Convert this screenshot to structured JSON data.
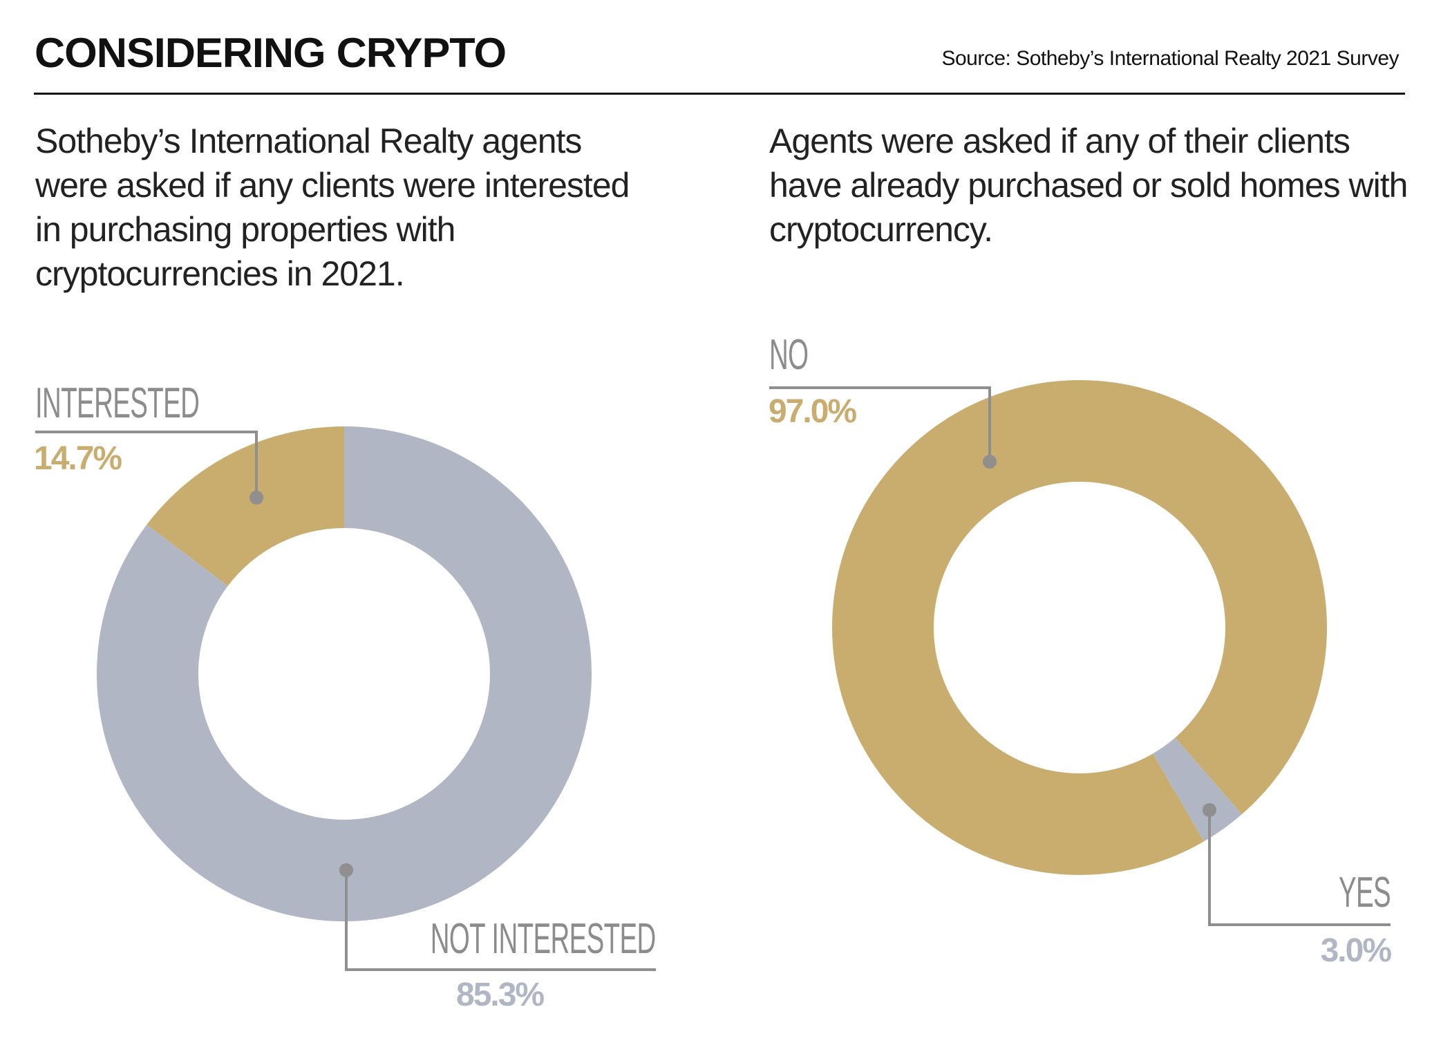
{
  "header": {
    "title": "CONSIDERING CRYPTO",
    "source": "Source: Sotheby’s International Realty 2021 Survey"
  },
  "colors": {
    "gold": "#c9ad6f",
    "gray": "#b0b6c3",
    "leader": "#8f8f8f"
  },
  "chart_data": [
    {
      "type": "pie",
      "variant": "donut",
      "description": "Sotheby’s International Realty agents were asked if any clients were interested in purchasing properties with cryptocurrencies in 2021.",
      "slices": [
        {
          "label": "INTERESTED",
          "value": 14.7,
          "display": "14.7%",
          "color": "#c9ad6f"
        },
        {
          "label": "NOT INTERESTED",
          "value": 85.3,
          "display": "85.3%",
          "color": "#b0b6c3"
        }
      ]
    },
    {
      "type": "pie",
      "variant": "donut",
      "description": "Agents were asked if any of their clients have already purchased or sold homes with cryptocurrency.",
      "slices": [
        {
          "label": "NO",
          "value": 97.0,
          "display": "97.0%",
          "color": "#c9ad6f"
        },
        {
          "label": "YES",
          "value": 3.0,
          "display": "3.0%",
          "color": "#b0b6c3"
        }
      ]
    }
  ]
}
